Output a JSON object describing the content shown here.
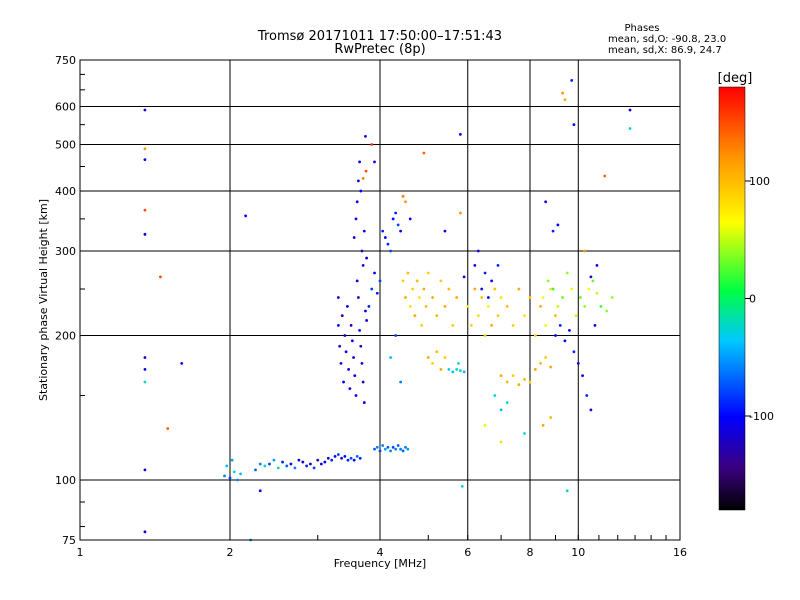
{
  "chart_data": {
    "type": "scatter",
    "title": "Tromsø 20171011 17:50:00–17:51:43",
    "subtitle": "RwPretec (8p)",
    "xlabel": "Frequency [MHz]",
    "ylabel": "Stationary phase Virtual Height [km]",
    "x_scale": "log",
    "y_scale": "log",
    "xlim": [
      1,
      16
    ],
    "ylim": [
      75,
      750
    ],
    "x_ticks": [
      1,
      2,
      4,
      6,
      8,
      10,
      16
    ],
    "y_ticks": [
      75,
      100,
      200,
      300,
      400,
      500,
      600,
      750
    ],
    "grid": true,
    "stats": {
      "heading": "Phases",
      "line1": "mean, sd,O:  -90.8, 23.0",
      "line2": "mean, sd,X:   86.9, 24.7"
    },
    "colorbar": {
      "label": "[deg]",
      "ticks": [
        100,
        0,
        -100
      ],
      "range": [
        -180,
        180
      ]
    },
    "series": [
      {
        "points": [
          [
            1.35,
            590,
            -110
          ],
          [
            1.35,
            465,
            -100
          ],
          [
            1.35,
            490,
            120
          ],
          [
            1.35,
            365,
            150
          ],
          [
            1.35,
            325,
            -100
          ],
          [
            1.35,
            180,
            -110
          ],
          [
            1.35,
            170,
            -100
          ],
          [
            1.35,
            160,
            -20
          ],
          [
            1.35,
            105,
            -100
          ],
          [
            1.35,
            78,
            -110
          ],
          [
            1.45,
            265,
            150
          ],
          [
            1.5,
            128,
            140
          ],
          [
            1.6,
            175,
            -110
          ],
          [
            2.15,
            355,
            -100
          ],
          [
            2.3,
            95,
            -110
          ],
          [
            2.2,
            75,
            -50
          ],
          [
            1.95,
            102,
            -60
          ],
          [
            1.97,
            107,
            -40
          ],
          [
            2.0,
            101,
            -80
          ],
          [
            2.02,
            110,
            -50
          ],
          [
            2.04,
            104,
            -30
          ],
          [
            2.07,
            100,
            -60
          ],
          [
            2.1,
            103,
            -40
          ],
          [
            2.25,
            105,
            -70
          ],
          [
            2.3,
            108,
            -60
          ],
          [
            2.35,
            107,
            -30
          ],
          [
            2.4,
            108,
            -80
          ],
          [
            2.45,
            110,
            -50
          ],
          [
            2.5,
            106,
            -10
          ],
          [
            2.55,
            109,
            -90
          ],
          [
            2.6,
            107,
            -70
          ],
          [
            2.65,
            108,
            -100
          ],
          [
            2.7,
            106,
            -60
          ],
          [
            2.75,
            110,
            -110
          ],
          [
            2.8,
            109,
            -120
          ],
          [
            2.85,
            107,
            -90
          ],
          [
            2.9,
            108,
            -120
          ],
          [
            2.95,
            106,
            -80
          ],
          [
            3.0,
            110,
            -130
          ],
          [
            3.05,
            108,
            -100
          ],
          [
            3.1,
            109,
            -110
          ],
          [
            3.15,
            111,
            -120
          ],
          [
            3.2,
            110,
            -90
          ],
          [
            3.25,
            112,
            -100
          ],
          [
            3.3,
            113,
            -80
          ],
          [
            3.35,
            111,
            -110
          ],
          [
            3.4,
            112,
            -100
          ],
          [
            3.45,
            110,
            -90
          ],
          [
            3.5,
            111,
            -80
          ],
          [
            3.55,
            110,
            -100
          ],
          [
            3.6,
            112,
            -70
          ],
          [
            3.65,
            111,
            -90
          ],
          [
            3.9,
            116,
            -70
          ],
          [
            3.95,
            117,
            -60
          ],
          [
            4.0,
            115,
            -80
          ],
          [
            4.05,
            118,
            -60
          ],
          [
            4.1,
            116,
            -50
          ],
          [
            4.15,
            117,
            -70
          ],
          [
            4.2,
            115,
            -60
          ],
          [
            4.25,
            117,
            -80
          ],
          [
            4.3,
            116,
            -60
          ],
          [
            4.35,
            118,
            -70
          ],
          [
            4.4,
            116,
            -60
          ],
          [
            4.45,
            115,
            -70
          ],
          [
            4.5,
            117,
            -60
          ],
          [
            4.55,
            116,
            -50
          ],
          [
            3.3,
            240,
            -110
          ],
          [
            3.3,
            210,
            -100
          ],
          [
            3.32,
            190,
            -120
          ],
          [
            3.34,
            175,
            -110
          ],
          [
            3.36,
            220,
            -130
          ],
          [
            3.38,
            160,
            -100
          ],
          [
            3.4,
            200,
            -120
          ],
          [
            3.42,
            185,
            -110
          ],
          [
            3.44,
            230,
            -100
          ],
          [
            3.46,
            170,
            -120
          ],
          [
            3.48,
            155,
            -110
          ],
          [
            3.5,
            210,
            -130
          ],
          [
            3.52,
            195,
            -100
          ],
          [
            3.54,
            180,
            -120
          ],
          [
            3.56,
            165,
            -110
          ],
          [
            3.58,
            150,
            -100
          ],
          [
            3.6,
            260,
            -110
          ],
          [
            3.62,
            240,
            -120
          ],
          [
            3.64,
            205,
            -100
          ],
          [
            3.66,
            190,
            -120
          ],
          [
            3.68,
            175,
            -110
          ],
          [
            3.7,
            160,
            -130
          ],
          [
            3.72,
            145,
            -110
          ],
          [
            3.74,
            225,
            -100
          ],
          [
            3.76,
            215,
            -120
          ],
          [
            3.55,
            320,
            -120
          ],
          [
            3.58,
            350,
            -110
          ],
          [
            3.6,
            380,
            -100
          ],
          [
            3.62,
            420,
            -120
          ],
          [
            3.64,
            460,
            -110
          ],
          [
            3.66,
            400,
            -100
          ],
          [
            3.68,
            300,
            -120
          ],
          [
            3.7,
            280,
            -110
          ],
          [
            3.72,
            330,
            -100
          ],
          [
            3.74,
            520,
            -110
          ],
          [
            3.76,
            290,
            -120
          ],
          [
            3.85,
            500,
            160
          ],
          [
            3.9,
            460,
            -110
          ],
          [
            3.7,
            425,
            130
          ],
          [
            3.75,
            440,
            150
          ],
          [
            3.8,
            230,
            -90
          ],
          [
            3.85,
            250,
            -80
          ],
          [
            3.9,
            270,
            -100
          ],
          [
            3.95,
            245,
            -90
          ],
          [
            4.0,
            260,
            -80
          ],
          [
            4.05,
            330,
            -90
          ],
          [
            4.1,
            320,
            -100
          ],
          [
            4.15,
            310,
            -90
          ],
          [
            4.2,
            300,
            -80
          ],
          [
            4.25,
            350,
            -100
          ],
          [
            4.3,
            360,
            -90
          ],
          [
            4.35,
            340,
            -80
          ],
          [
            4.4,
            330,
            -100
          ],
          [
            4.45,
            390,
            130
          ],
          [
            4.5,
            380,
            120
          ],
          [
            4.6,
            350,
            -100
          ],
          [
            4.2,
            180,
            -40
          ],
          [
            4.3,
            200,
            -80
          ],
          [
            4.4,
            160,
            -60
          ],
          [
            4.45,
            260,
            90
          ],
          [
            4.5,
            240,
            110
          ],
          [
            4.55,
            270,
            100
          ],
          [
            4.6,
            230,
            80
          ],
          [
            4.65,
            250,
            90
          ],
          [
            4.7,
            220,
            110
          ],
          [
            4.75,
            260,
            100
          ],
          [
            4.8,
            240,
            80
          ],
          [
            4.85,
            210,
            90
          ],
          [
            4.9,
            250,
            110
          ],
          [
            4.95,
            230,
            100
          ],
          [
            5.0,
            270,
            90
          ],
          [
            5.1,
            240,
            110
          ],
          [
            5.2,
            220,
            100
          ],
          [
            5.3,
            260,
            90
          ],
          [
            5.4,
            230,
            110
          ],
          [
            5.5,
            250,
            100
          ],
          [
            5.6,
            210,
            90
          ],
          [
            5.7,
            240,
            110
          ],
          [
            5.0,
            180,
            110
          ],
          [
            5.1,
            175,
            90
          ],
          [
            5.2,
            185,
            100
          ],
          [
            5.3,
            170,
            110
          ],
          [
            5.4,
            180,
            90
          ],
          [
            5.5,
            170,
            -30
          ],
          [
            5.6,
            168,
            -40
          ],
          [
            5.7,
            170,
            -20
          ],
          [
            5.8,
            169,
            -30
          ],
          [
            5.9,
            168,
            -40
          ],
          [
            5.75,
            175,
            -30
          ],
          [
            4.9,
            480,
            140
          ],
          [
            5.4,
            330,
            -100
          ],
          [
            5.9,
            265,
            -110
          ],
          [
            5.8,
            525,
            -110
          ],
          [
            5.85,
            97,
            -30
          ],
          [
            5.8,
            360,
            120
          ],
          [
            6.2,
            280,
            -100
          ],
          [
            6.3,
            300,
            -110
          ],
          [
            6.5,
            270,
            -90
          ],
          [
            6.7,
            260,
            -100
          ],
          [
            6.9,
            280,
            -90
          ],
          [
            6.4,
            250,
            -110
          ],
          [
            6.6,
            240,
            -100
          ],
          [
            6.0,
            230,
            60
          ],
          [
            6.1,
            210,
            90
          ],
          [
            6.2,
            250,
            110
          ],
          [
            6.3,
            220,
            80
          ],
          [
            6.4,
            240,
            100
          ],
          [
            6.5,
            200,
            90
          ],
          [
            6.6,
            230,
            60
          ],
          [
            6.7,
            210,
            110
          ],
          [
            6.8,
            250,
            100
          ],
          [
            6.9,
            220,
            90
          ],
          [
            7.0,
            240,
            80
          ],
          [
            7.2,
            230,
            100
          ],
          [
            7.4,
            210,
            90
          ],
          [
            7.6,
            250,
            110
          ],
          [
            7.8,
            220,
            80
          ],
          [
            8.0,
            240,
            100
          ],
          [
            8.2,
            200,
            90
          ],
          [
            8.4,
            230,
            110
          ],
          [
            8.6,
            210,
            60
          ],
          [
            8.8,
            250,
            80
          ],
          [
            9.0,
            220,
            100
          ],
          [
            7.0,
            165,
            110
          ],
          [
            7.2,
            160,
            100
          ],
          [
            7.4,
            165,
            90
          ],
          [
            7.6,
            158,
            110
          ],
          [
            7.8,
            162,
            100
          ],
          [
            8.0,
            160,
            90
          ],
          [
            8.2,
            170,
            110
          ],
          [
            8.4,
            175,
            100
          ],
          [
            8.6,
            180,
            90
          ],
          [
            8.8,
            172,
            110
          ],
          [
            6.8,
            150,
            -30
          ],
          [
            7.0,
            140,
            -40
          ],
          [
            7.2,
            145,
            -20
          ],
          [
            6.5,
            130,
            60
          ],
          [
            7.0,
            120,
            80
          ],
          [
            7.8,
            125,
            -30
          ],
          [
            8.5,
            130,
            110
          ],
          [
            8.8,
            135,
            100
          ],
          [
            8.5,
            240,
            60
          ],
          [
            8.7,
            260,
            40
          ],
          [
            8.9,
            250,
            20
          ],
          [
            9.1,
            230,
            50
          ],
          [
            9.3,
            240,
            30
          ],
          [
            9.5,
            270,
            40
          ],
          [
            9.7,
            250,
            60
          ],
          [
            9.9,
            220,
            50
          ],
          [
            10.1,
            240,
            30
          ],
          [
            10.3,
            230,
            40
          ],
          [
            10.5,
            250,
            60
          ],
          [
            10.7,
            260,
            30
          ],
          [
            10.9,
            245,
            50
          ],
          [
            11.1,
            230,
            20
          ],
          [
            11.4,
            225,
            40
          ],
          [
            9.0,
            200,
            -100
          ],
          [
            9.2,
            210,
            -90
          ],
          [
            9.4,
            195,
            -110
          ],
          [
            9.6,
            205,
            -100
          ],
          [
            9.8,
            185,
            -90
          ],
          [
            10.0,
            175,
            -110
          ],
          [
            10.2,
            165,
            -100
          ],
          [
            10.4,
            150,
            -90
          ],
          [
            10.6,
            140,
            -110
          ],
          [
            10.8,
            210,
            -100
          ],
          [
            8.9,
            330,
            -90
          ],
          [
            9.1,
            340,
            -100
          ],
          [
            8.6,
            380,
            -110
          ],
          [
            9.4,
            620,
            110
          ],
          [
            9.3,
            640,
            120
          ],
          [
            9.7,
            680,
            -90
          ],
          [
            9.8,
            550,
            -100
          ],
          [
            9.5,
            95,
            -20
          ],
          [
            10.3,
            300,
            120
          ],
          [
            10.6,
            265,
            -120
          ],
          [
            10.9,
            280,
            -100
          ],
          [
            11.3,
            430,
            140
          ],
          [
            12.7,
            590,
            -110
          ],
          [
            12.7,
            540,
            -30
          ],
          [
            11.7,
            240,
            40
          ]
        ]
      }
    ]
  }
}
